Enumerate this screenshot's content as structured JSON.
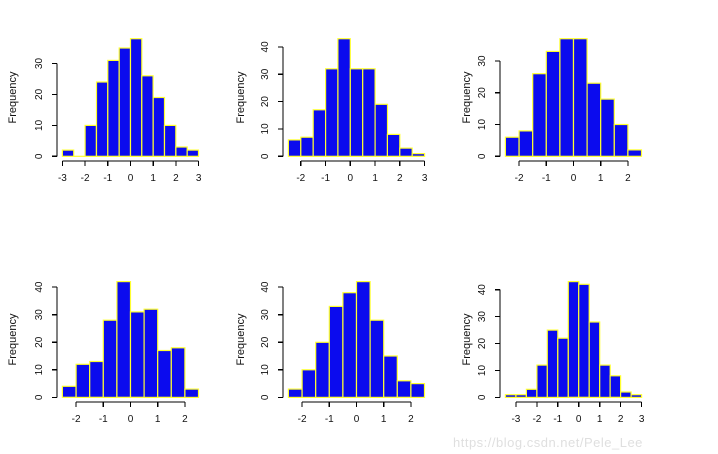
{
  "watermark": {
    "text": "https://blog.csdn.net/Pele_Lee",
    "color": "#dfdfdf"
  },
  "colors": {
    "background": "#ffffff",
    "bar_fill": "#0b0bee",
    "bar_border": "#ffff2e",
    "axis": "#000000",
    "tick_label": "#111111"
  },
  "chart_data": [
    {
      "type": "bar",
      "title": "",
      "xlabel": "",
      "ylabel": "Frequency",
      "grid": false,
      "legend": "none",
      "bin_start": -3,
      "bin_width": 0.5,
      "values": [
        2,
        0,
        10,
        24,
        31,
        35,
        38,
        26,
        19,
        10,
        3,
        2
      ],
      "xticks": [
        -3,
        -2,
        -1,
        0,
        1,
        2,
        3
      ],
      "yticks": [
        0,
        10,
        20,
        30
      ],
      "xlim": [
        -3,
        3
      ],
      "ylim": [
        0,
        38
      ]
    },
    {
      "type": "bar",
      "title": "",
      "xlabel": "",
      "ylabel": "Frequency",
      "grid": false,
      "legend": "none",
      "bin_start": -2.5,
      "bin_width": 0.5,
      "values": [
        6,
        7,
        17,
        32,
        43,
        32,
        32,
        19,
        8,
        3,
        1
      ],
      "xticks": [
        -2,
        -1,
        0,
        1,
        2,
        3
      ],
      "yticks": [
        0,
        10,
        20,
        30,
        40
      ],
      "xlim": [
        -2.5,
        3
      ],
      "ylim": [
        0,
        43
      ]
    },
    {
      "type": "bar",
      "title": "",
      "xlabel": "",
      "ylabel": "Frequency",
      "grid": false,
      "legend": "none",
      "bin_start": -2.5,
      "bin_width": 0.5,
      "values": [
        6,
        8,
        26,
        33,
        37,
        37,
        23,
        18,
        10,
        2
      ],
      "xticks": [
        -2,
        -1,
        0,
        1,
        2
      ],
      "yticks": [
        0,
        10,
        20,
        30
      ],
      "xlim": [
        -2.5,
        2.5
      ],
      "ylim": [
        0,
        37
      ]
    },
    {
      "type": "bar",
      "title": "",
      "xlabel": "",
      "ylabel": "Frequency",
      "grid": false,
      "legend": "none",
      "bin_start": -2.5,
      "bin_width": 0.5,
      "values": [
        4,
        12,
        13,
        28,
        42,
        31,
        32,
        17,
        18,
        3
      ],
      "xticks": [
        -2,
        -1,
        0,
        1,
        2
      ],
      "yticks": [
        0,
        10,
        20,
        30,
        40
      ],
      "xlim": [
        -2.5,
        2.5
      ],
      "ylim": [
        0,
        42
      ]
    },
    {
      "type": "bar",
      "title": "",
      "xlabel": "",
      "ylabel": "Frequency",
      "grid": false,
      "legend": "none",
      "bin_start": -2.5,
      "bin_width": 0.5,
      "values": [
        3,
        10,
        20,
        33,
        38,
        42,
        28,
        15,
        6,
        5
      ],
      "xticks": [
        -2,
        -1,
        0,
        1,
        2
      ],
      "yticks": [
        0,
        10,
        20,
        30,
        40
      ],
      "xlim": [
        -2.5,
        2.5
      ],
      "ylim": [
        0,
        42
      ]
    },
    {
      "type": "bar",
      "title": "",
      "xlabel": "",
      "ylabel": "Frequency",
      "grid": false,
      "legend": "none",
      "bin_start": -3.5,
      "bin_width": 0.5,
      "values": [
        1,
        1,
        3,
        12,
        25,
        22,
        43,
        42,
        28,
        12,
        8,
        2,
        1
      ],
      "xticks": [
        -3,
        -2,
        -1,
        0,
        1,
        2,
        3
      ],
      "yticks": [
        0,
        10,
        20,
        30,
        40
      ],
      "xlim": [
        -3.5,
        3
      ],
      "ylim": [
        0,
        43
      ]
    }
  ]
}
